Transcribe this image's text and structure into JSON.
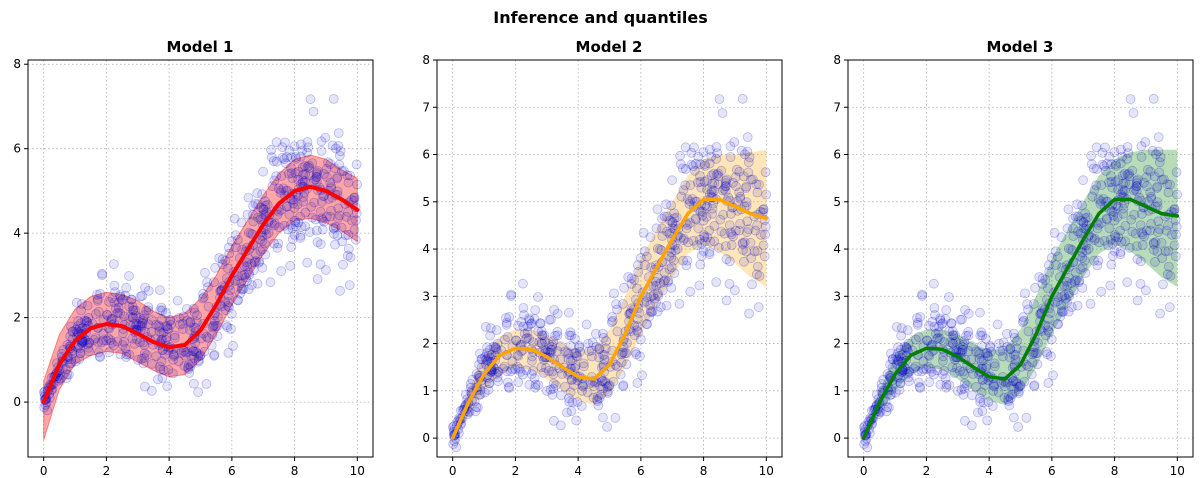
{
  "suptitle": "Inference and quantiles",
  "colors": {
    "scatter": "#0000cc",
    "model1": "#ff0000",
    "model2": "#ffa500",
    "model3": "#008000",
    "grid": "#b0b0b0"
  },
  "chart_data": [
    {
      "type": "line",
      "title": "Model 1",
      "xlabel": "",
      "ylabel": "",
      "xlim": [
        -0.5,
        10.5
      ],
      "ylim": [
        -1.3,
        8.1
      ],
      "xticks": [
        "0",
        "2",
        "4",
        "6",
        "8",
        "10"
      ],
      "yticks": [
        "0",
        "2",
        "4",
        "6",
        "8"
      ],
      "grid": true,
      "line_color": "#ff0000",
      "band": "outline-red",
      "x": [
        0,
        0.5,
        1,
        1.5,
        2,
        2.5,
        3,
        3.5,
        4,
        4.5,
        5,
        5.5,
        6,
        6.5,
        7,
        7.5,
        8,
        8.5,
        9,
        9.5,
        10
      ],
      "mean": [
        0.0,
        0.9,
        1.45,
        1.75,
        1.85,
        1.8,
        1.62,
        1.42,
        1.3,
        1.35,
        1.7,
        2.3,
        3.0,
        3.6,
        4.2,
        4.7,
        5.0,
        5.1,
        5.0,
        4.8,
        4.55
      ],
      "band_upper": [
        0.5,
        1.6,
        2.2,
        2.5,
        2.6,
        2.55,
        2.4,
        2.15,
        2.0,
        2.1,
        2.45,
        3.0,
        3.7,
        4.3,
        4.9,
        5.4,
        5.75,
        5.85,
        5.75,
        5.5,
        5.3
      ],
      "band_lower": [
        -0.9,
        0.3,
        0.9,
        1.1,
        1.2,
        1.15,
        0.95,
        0.75,
        0.6,
        0.65,
        1.0,
        1.6,
        2.3,
        2.9,
        3.5,
        4.0,
        4.3,
        4.35,
        4.25,
        4.05,
        3.8
      ]
    },
    {
      "type": "line",
      "title": "Model 2",
      "xlabel": "",
      "ylabel": "",
      "xlim": [
        -0.5,
        10.5
      ],
      "ylim": [
        -0.4,
        8.0
      ],
      "xticks": [
        "0",
        "2",
        "4",
        "6",
        "8",
        "10"
      ],
      "yticks": [
        "0",
        "1",
        "2",
        "3",
        "4",
        "5",
        "6",
        "7",
        "8"
      ],
      "grid": true,
      "line_color": "#ffa500",
      "x": [
        0,
        0.5,
        1,
        1.5,
        2,
        2.5,
        3,
        3.5,
        4,
        4.5,
        5,
        5.5,
        6,
        6.5,
        7,
        7.5,
        8,
        8.5,
        9,
        9.5,
        10
      ],
      "mean": [
        0.0,
        0.75,
        1.35,
        1.75,
        1.9,
        1.88,
        1.72,
        1.5,
        1.3,
        1.25,
        1.55,
        2.2,
        3.0,
        3.6,
        4.2,
        4.75,
        5.05,
        5.05,
        4.9,
        4.75,
        4.65
      ],
      "band_upper": [
        0.1,
        1.0,
        1.75,
        2.15,
        2.3,
        2.3,
        2.2,
        2.0,
        1.85,
        1.9,
        2.3,
        3.0,
        3.8,
        4.4,
        5.0,
        5.55,
        5.9,
        6.0,
        6.0,
        6.05,
        6.1
      ],
      "band_lower": [
        -0.05,
        0.5,
        1.0,
        1.35,
        1.5,
        1.45,
        1.25,
        1.0,
        0.8,
        0.7,
        0.95,
        1.5,
        2.2,
        2.8,
        3.4,
        3.9,
        4.1,
        3.95,
        3.7,
        3.4,
        3.2
      ]
    },
    {
      "type": "line",
      "title": "Model 3",
      "xlabel": "",
      "ylabel": "",
      "xlim": [
        -0.5,
        10.5
      ],
      "ylim": [
        -0.4,
        8.0
      ],
      "xticks": [
        "0",
        "2",
        "4",
        "6",
        "8",
        "10"
      ],
      "yticks": [
        "0",
        "1",
        "2",
        "3",
        "4",
        "5",
        "6",
        "7",
        "8"
      ],
      "grid": true,
      "line_color": "#008000",
      "x": [
        0,
        0.5,
        1,
        1.5,
        2,
        2.5,
        3,
        3.5,
        4,
        4.5,
        5,
        5.5,
        6,
        6.5,
        7,
        7.5,
        8,
        8.5,
        9,
        9.5,
        10
      ],
      "mean": [
        0.0,
        0.75,
        1.35,
        1.75,
        1.9,
        1.88,
        1.72,
        1.5,
        1.3,
        1.25,
        1.55,
        2.2,
        3.0,
        3.6,
        4.2,
        4.75,
        5.05,
        5.05,
        4.9,
        4.75,
        4.7
      ],
      "band_upper": [
        0.1,
        1.0,
        1.75,
        2.15,
        2.3,
        2.3,
        2.2,
        2.0,
        1.85,
        1.9,
        2.3,
        3.0,
        3.8,
        4.4,
        5.0,
        5.55,
        5.9,
        6.05,
        6.1,
        6.1,
        6.1
      ],
      "band_lower": [
        -0.05,
        0.5,
        1.0,
        1.35,
        1.5,
        1.45,
        1.25,
        1.0,
        0.8,
        0.7,
        0.95,
        1.5,
        2.2,
        2.8,
        3.4,
        3.9,
        4.1,
        3.95,
        3.7,
        3.4,
        3.2
      ]
    }
  ]
}
